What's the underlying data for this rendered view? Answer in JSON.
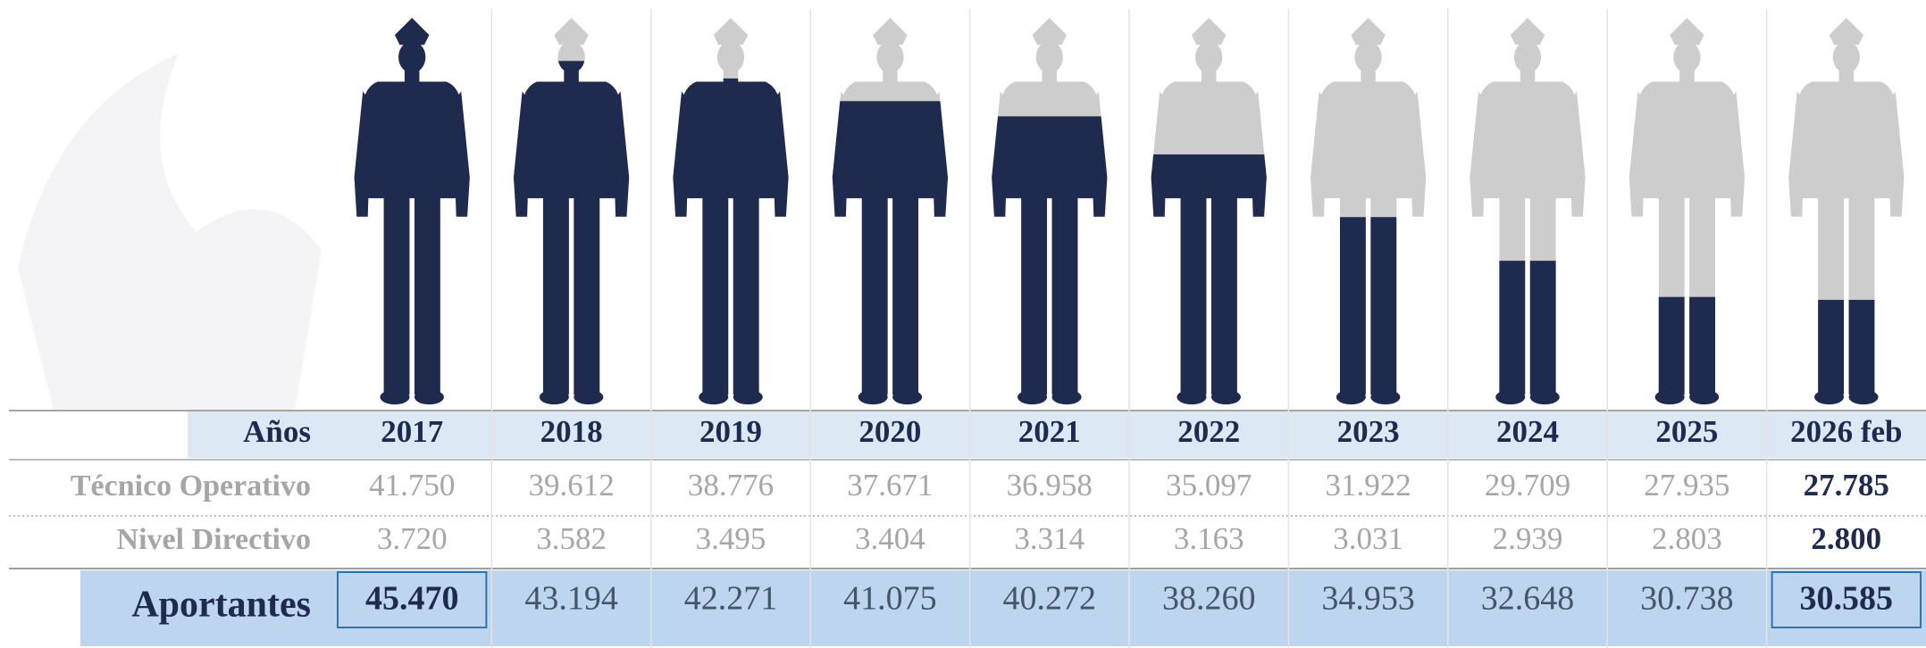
{
  "chart_data": {
    "type": "pictogram",
    "x_label": "Años",
    "categories": [
      "2017",
      "2018",
      "2019",
      "2020",
      "2021",
      "2022",
      "2023",
      "2024",
      "2025",
      "2026 feb"
    ],
    "ylim": [
      25000,
      45470
    ],
    "empty_color": "#cdcdcd",
    "series": [
      {
        "name": "Técnico Operativo",
        "values": [
          41750,
          39612,
          38776,
          37671,
          36958,
          35097,
          31922,
          29709,
          27935,
          27785
        ],
        "value_labels": [
          "41.750",
          "39.612",
          "38.776",
          "37.671",
          "36.958",
          "35.097",
          "31.922",
          "29.709",
          "27.935",
          "27.785"
        ]
      },
      {
        "name": "Nivel Directivo",
        "values": [
          3720,
          3582,
          3495,
          3404,
          3314,
          3163,
          3031,
          2939,
          2803,
          2800
        ],
        "value_labels": [
          "3.720",
          "3.582",
          "3.495",
          "3.404",
          "3.314",
          "3.163",
          "3.031",
          "2.939",
          "2.803",
          "2.800"
        ]
      },
      {
        "name": "Aportantes",
        "color": "#1f2a4f",
        "values": [
          45470,
          43194,
          42271,
          41075,
          40272,
          38260,
          34953,
          32648,
          30738,
          30585
        ],
        "value_labels": [
          "45.470",
          "43.194",
          "42.271",
          "41.075",
          "40.272",
          "38.260",
          "34.953",
          "32.648",
          "30.738",
          "30.585"
        ]
      }
    ]
  }
}
